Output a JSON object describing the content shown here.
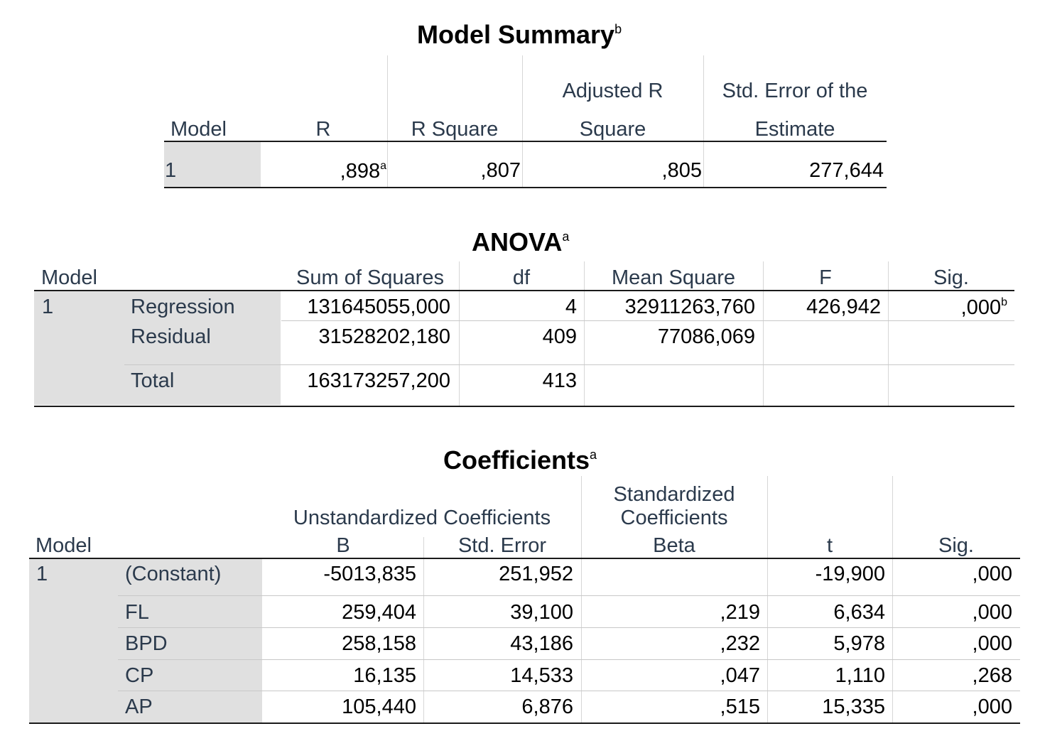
{
  "model_summary": {
    "title": "Model Summary",
    "title_sup": "b",
    "headers": {
      "model": "Model",
      "r": "R",
      "r_square": "R Square",
      "adj_r_line1": "Adjusted R",
      "adj_r_line2": "Square",
      "std_err_line1": "Std. Error of the",
      "std_err_line2": "Estimate"
    },
    "row": {
      "model": "1",
      "r": ",898",
      "r_sup": "a",
      "r_square": ",807",
      "adj_r_square": ",805",
      "std_error": "277,644"
    }
  },
  "anova": {
    "title": "ANOVA",
    "title_sup": "a",
    "headers": {
      "model": "Model",
      "sum_sq": "Sum of Squares",
      "df": "df",
      "mean_sq": "Mean Square",
      "f": "F",
      "sig": "Sig."
    },
    "model": "1",
    "rows": [
      {
        "label": "Regression",
        "sum_sq": "131645055,000",
        "df": "4",
        "mean_sq": "32911263,760",
        "f": "426,942",
        "sig": ",000",
        "sig_sup": "b"
      },
      {
        "label": "Residual",
        "sum_sq": "31528202,180",
        "df": "409",
        "mean_sq": "77086,069",
        "f": "",
        "sig": ""
      },
      {
        "label": "Total",
        "sum_sq": "163173257,200",
        "df": "413",
        "mean_sq": "",
        "f": "",
        "sig": ""
      }
    ]
  },
  "coefficients": {
    "title": "Coefficients",
    "title_sup": "a",
    "headers": {
      "model": "Model",
      "unstd": "Unstandardized Coefficients",
      "std_line1": "Standardized",
      "std_line2": "Coefficients",
      "b": "B",
      "std_error": "Std. Error",
      "beta": "Beta",
      "t": "t",
      "sig": "Sig."
    },
    "model": "1",
    "rows": [
      {
        "label": "(Constant)",
        "b": "-5013,835",
        "std_error": "251,952",
        "beta": "",
        "t": "-19,900",
        "sig": ",000"
      },
      {
        "label": "FL",
        "b": "259,404",
        "std_error": "39,100",
        "beta": ",219",
        "t": "6,634",
        "sig": ",000"
      },
      {
        "label": "BPD",
        "b": "258,158",
        "std_error": "43,186",
        "beta": ",232",
        "t": "5,978",
        "sig": ",000"
      },
      {
        "label": "CP",
        "b": "16,135",
        "std_error": "14,533",
        "beta": ",047",
        "t": "1,110",
        "sig": ",268"
      },
      {
        "label": "AP",
        "b": "105,440",
        "std_error": "6,876",
        "beta": ",515",
        "t": "15,335",
        "sig": ",000"
      }
    ]
  }
}
